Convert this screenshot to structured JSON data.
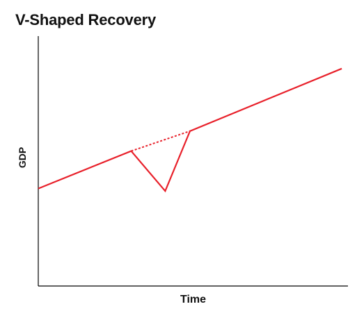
{
  "chart_data": {
    "type": "line",
    "title": "V-Shaped Recovery",
    "xlabel": "Time",
    "ylabel": "GDP",
    "grid": false,
    "legend": "none",
    "series": [
      {
        "style": "solid",
        "color": "#e8202a",
        "points": [
          {
            "x": 0,
            "y": 39
          },
          {
            "x": 30,
            "y": 54
          },
          {
            "x": 41,
            "y": 38
          },
          {
            "x": 49,
            "y": 62
          },
          {
            "x": 98,
            "y": 87
          }
        ]
      },
      {
        "style": "dashed",
        "color": "#e8202a",
        "points": [
          {
            "x": 30,
            "y": 54
          },
          {
            "x": 49,
            "y": 62
          }
        ]
      }
    ],
    "xlim": [
      0,
      100
    ],
    "ylim": [
      0,
      100
    ]
  }
}
